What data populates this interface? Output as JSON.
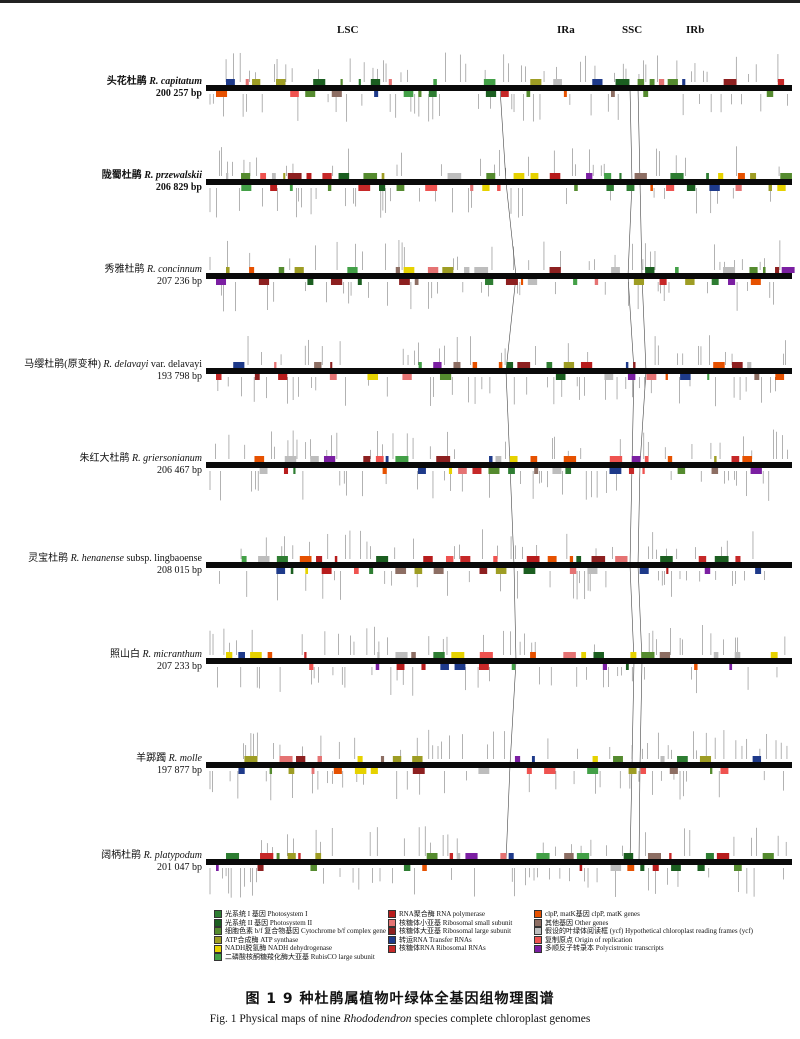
{
  "figure": {
    "regions": [
      "LSC",
      "IRa",
      "SSC",
      "IRb"
    ],
    "species": [
      {
        "cn": "头花杜鹃",
        "latin": "R. capitatum",
        "suffix": "",
        "size": "200 257 bp",
        "bold": true
      },
      {
        "cn": "陇蜀杜鹃",
        "latin": "R. przewalskii",
        "suffix": "",
        "size": "206 829 bp",
        "bold": true
      },
      {
        "cn": "秀雅杜鹃",
        "latin": "R. concinnum",
        "suffix": "",
        "size": "207 236 bp",
        "bold": false
      },
      {
        "cn": "马缨杜鹃(原变种)",
        "latin": "R. delavayi",
        "suffix": " var. delavayi",
        "size": "193 798 bp",
        "bold": false
      },
      {
        "cn": "朱红大杜鹃",
        "latin": "R. griersonianum",
        "suffix": "",
        "size": "206 467 bp",
        "bold": false
      },
      {
        "cn": "灵宝杜鹃",
        "latin": "R. henanense",
        "suffix": " subsp. lingbaoense",
        "size": "208 015 bp",
        "bold": false
      },
      {
        "cn": "照山白",
        "latin": "R. micranthum",
        "suffix": "",
        "size": "207 233 bp",
        "bold": false
      },
      {
        "cn": "羊踯躅",
        "latin": "R. molle",
        "suffix": "",
        "size": "197 877 bp",
        "bold": false
      },
      {
        "cn": "阔柄杜鹃",
        "latin": "R. platypodum",
        "suffix": "",
        "size": "201 047 bp",
        "bold": false
      }
    ]
  },
  "legend": [
    {
      "label": "光系统 I 基因 Photosystem I",
      "color": "#2e7d32"
    },
    {
      "label": "光系统 II 基因 Photosystem II",
      "color": "#1b5e20"
    },
    {
      "label": "细胞色素 b/f 复合物基因 Cytochrome b/f complex gene",
      "color": "#558b2f"
    },
    {
      "label": "ATP合成酶 ATP synthase",
      "color": "#9e9d24"
    },
    {
      "label": "NADH脱氢酶 NADH dehydrogenase",
      "color": "#e6d200"
    },
    {
      "label": "二磷酸核酮糖羧化酶大亚基 RubisCO large subunit",
      "color": "#43a047"
    },
    {
      "label": "RNA聚合酶 RNA polymerase",
      "color": "#b71c1c"
    },
    {
      "label": "核糖体小亚基 Ribosomal small subunit",
      "color": "#e57373"
    },
    {
      "label": "核糖体大亚基 Ribosomal large subunit",
      "color": "#8d2020"
    },
    {
      "label": "转运RNA Transfer RNAs",
      "color": "#1e3a8a"
    },
    {
      "label": "核糖体RNA Ribosomal RNAs",
      "color": "#c62828"
    },
    {
      "label": "clpP, matK基因 clpP, matK genes",
      "color": "#e65100"
    },
    {
      "label": "其他基因 Other genes",
      "color": "#8d6e63"
    },
    {
      "label": "假设的叶绿体阅读框 (ycf) Hypothetical chloroplast reading frames (ycf)",
      "color": "#bdbdbd"
    },
    {
      "label": "复制原点 Origin of replication",
      "color": "#ef5350"
    },
    {
      "label": "多顺反子转录本 Polycistronic transcripts",
      "color": "#7b1fa2"
    }
  ],
  "caption": {
    "cn": "图 1   9 种杜鹃属植物叶绿体全基因组物理图谱",
    "en_prefix": "Fig. 1   Physical maps of nine ",
    "en_genus": "Rhododendron",
    "en_suffix": " species complete chloroplast genomes"
  },
  "colors": {
    "track": "#0a0a0a",
    "line": "#444444"
  }
}
